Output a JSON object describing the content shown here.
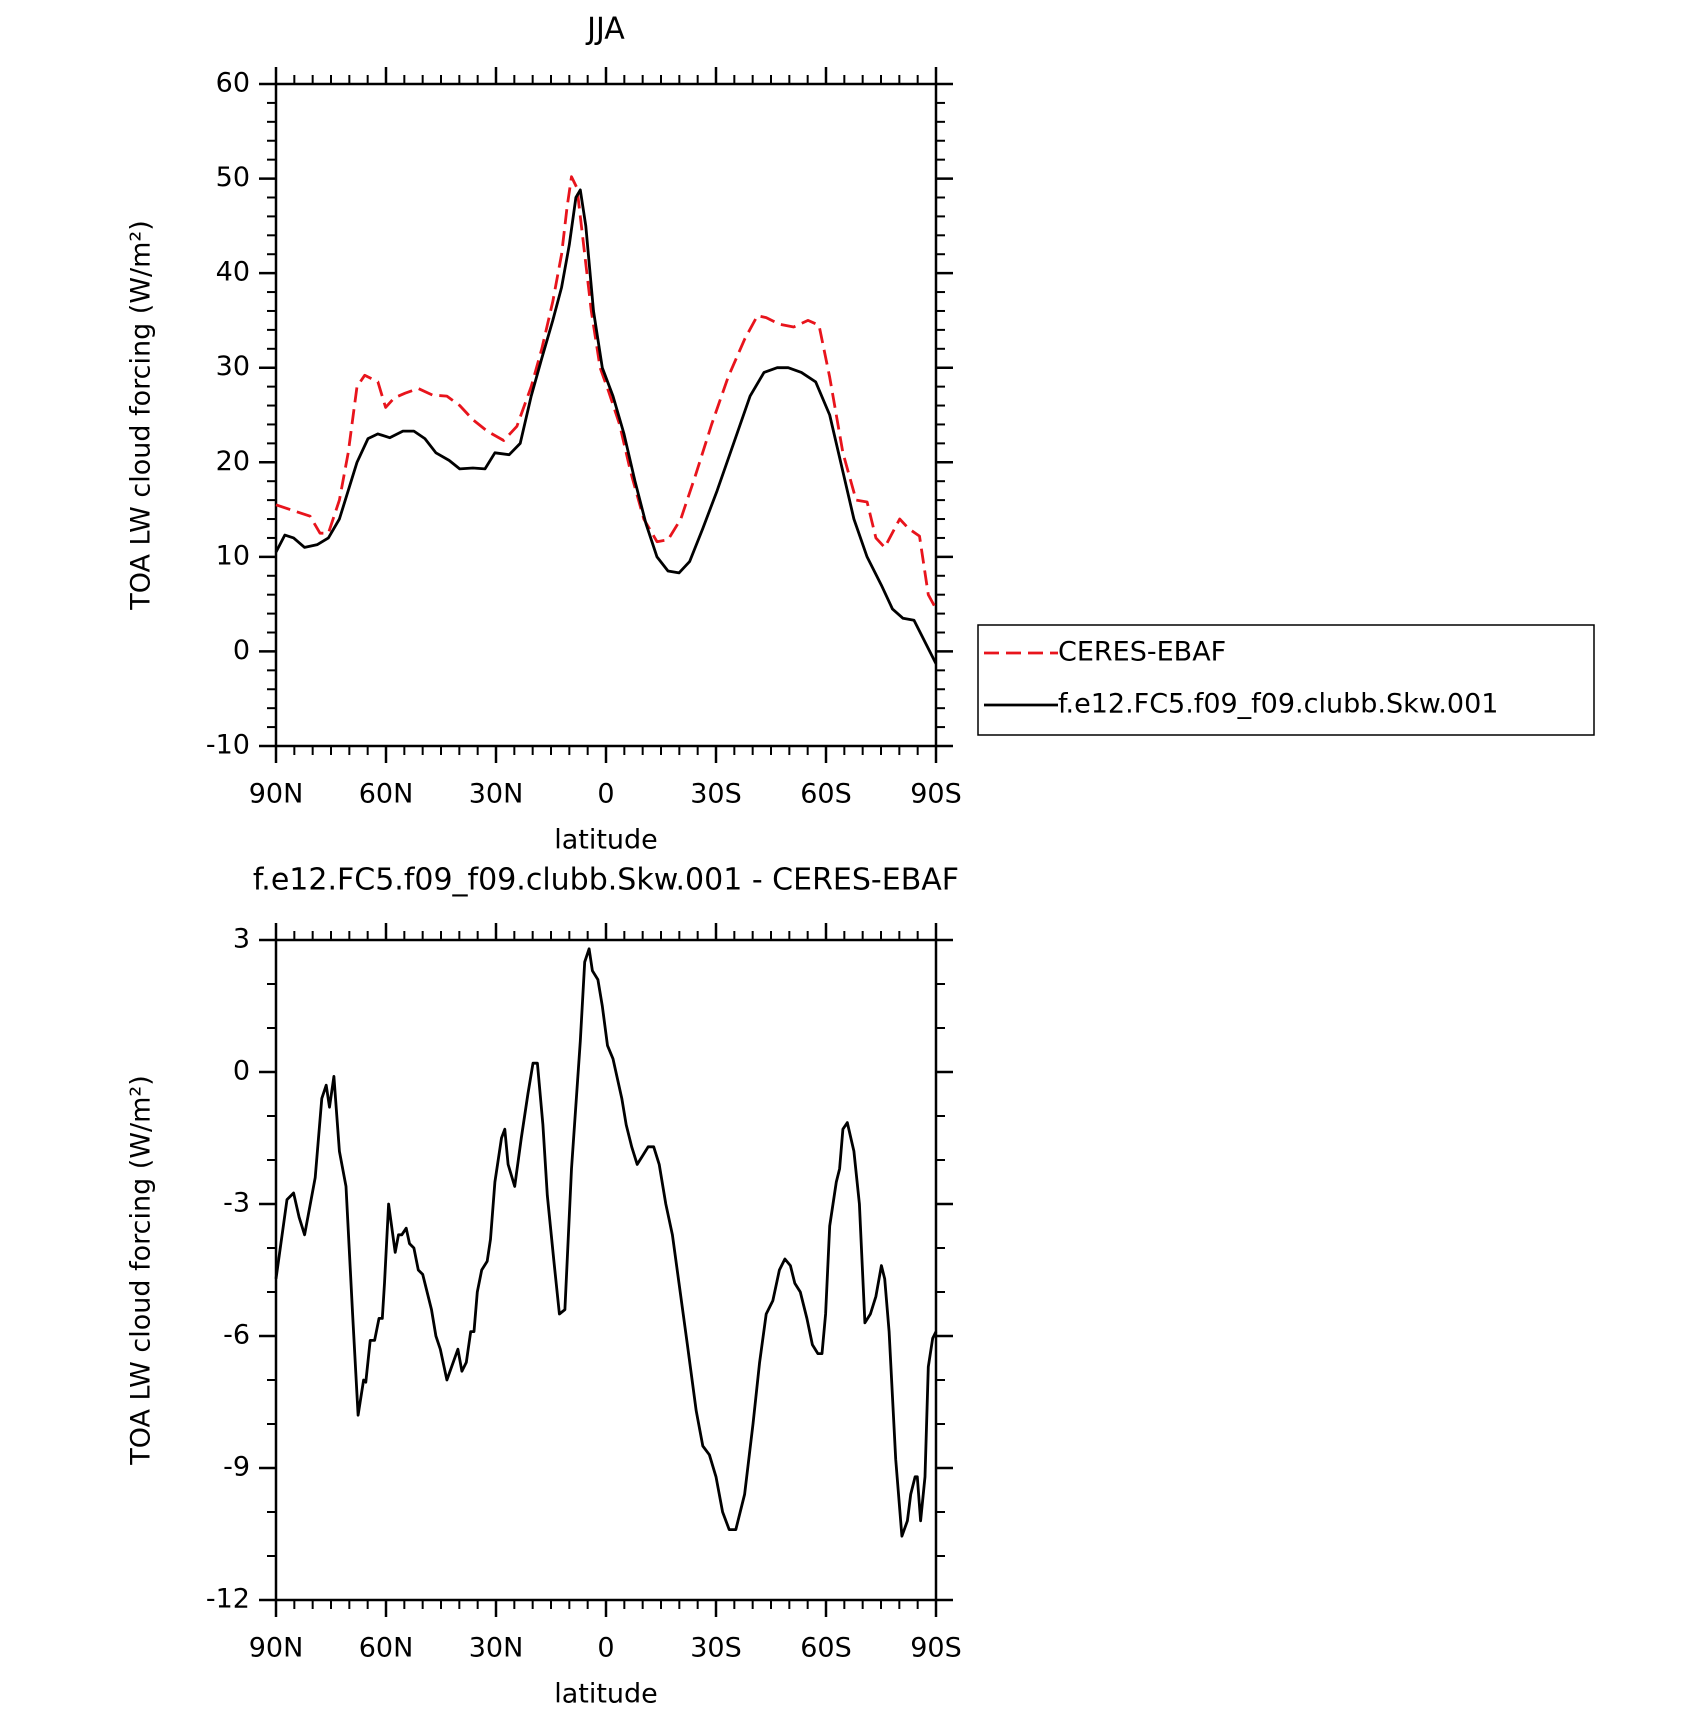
{
  "chart_data": [
    {
      "type": "line",
      "title": "JJA",
      "xlabel": "latitude",
      "ylabel": "TOA LW cloud forcing (W/m²)",
      "xlim": [
        90,
        -90
      ],
      "xticks": [
        {
          "value": 90,
          "label": "90N"
        },
        {
          "value": 60,
          "label": "60N"
        },
        {
          "value": 30,
          "label": "30N"
        },
        0,
        {
          "value": -30,
          "label": "30S"
        },
        {
          "value": -60,
          "label": "60S"
        },
        {
          "value": -90,
          "label": "90S"
        }
      ],
      "ylim": [
        -10,
        60
      ],
      "yticks": [
        -10,
        0,
        10,
        20,
        30,
        40,
        50,
        60
      ],
      "legend": "right",
      "series": [
        {
          "name": "CERES-EBAF",
          "color": "#e8141c",
          "dash": true,
          "x": [
            90,
            84.6,
            80.7,
            78,
            75.7,
            72.7,
            70.3,
            67.9,
            65.8,
            62.2,
            60.1,
            57.8,
            54.8,
            51.2,
            47.3,
            43.4,
            39.9,
            36.3,
            32.4,
            27.9,
            24.3,
            20.4,
            17.5,
            14.5,
            12.1,
            10.6,
            9.4,
            7.9,
            6.4,
            4.0,
            1.6,
            -0.7,
            -3.7,
            -6.7,
            -10.3,
            -13.9,
            -16.9,
            -20.4,
            -24.3,
            -28.8,
            -33.3,
            -37.8,
            -41.3,
            -43.7,
            -47.3,
            -51.2,
            -55.1,
            -58.1,
            -61.0,
            -64.6,
            -68.2,
            -71.2,
            -73.6,
            -76.0,
            -80.1,
            -82.5,
            -85.5,
            -87.9,
            -90
          ],
          "values": [
            15.5,
            14.8,
            14.3,
            12.5,
            12.5,
            16,
            21,
            28,
            29.2,
            28.5,
            25.8,
            26.8,
            27.3,
            27.8,
            27.1,
            27,
            26,
            24.5,
            23.3,
            22.3,
            23.8,
            28,
            32,
            37,
            42,
            47,
            50.2,
            49,
            44,
            36,
            30,
            27.5,
            24,
            19,
            14,
            11.6,
            11.8,
            14,
            18.5,
            24,
            29,
            33,
            35.5,
            35.3,
            34.6,
            34.3,
            35,
            34.5,
            29,
            21,
            16,
            15.8,
            12,
            11,
            14,
            13,
            12.2,
            6,
            4.5
          ]
        },
        {
          "name": "f.e12.FC5.f09_f09.clubb.Skw.001",
          "color": "#000000",
          "dash": false,
          "x": [
            90,
            87.6,
            85.2,
            82.2,
            78.7,
            75.7,
            72.7,
            70.3,
            67.9,
            64.9,
            62.2,
            59.0,
            55.4,
            52.4,
            49.4,
            46.4,
            42.8,
            39.9,
            36.3,
            33.0,
            30.3,
            26.4,
            23.4,
            20.4,
            17.5,
            14.5,
            12.1,
            10.0,
            8.2,
            7.0,
            5.5,
            3.4,
            1.0,
            -1.9,
            -4.9,
            -7.9,
            -10.9,
            -13.9,
            -16.9,
            -19.9,
            -22.8,
            -26.4,
            -30.3,
            -34.8,
            -39.3,
            -43.1,
            -46.7,
            -49.7,
            -53.3,
            -57.2,
            -61.0,
            -64.6,
            -67.6,
            -71.2,
            -75.1,
            -78.1,
            -81.0,
            -84.0,
            -87.0,
            -90
          ],
          "values": [
            10.5,
            12.3,
            12,
            11,
            11.3,
            12,
            14,
            17,
            20,
            22.5,
            23,
            22.6,
            23.3,
            23.3,
            22.5,
            21,
            20.2,
            19.3,
            19.4,
            19.3,
            21,
            20.8,
            22,
            27,
            31,
            35,
            38.5,
            43,
            48,
            48.8,
            45,
            36,
            30,
            27,
            23,
            18,
            13.5,
            10,
            8.5,
            8.3,
            9.5,
            13,
            17,
            22,
            27,
            29.5,
            30,
            30,
            29.5,
            28.5,
            25,
            19,
            14,
            10,
            7,
            4.5,
            3.5,
            3.3,
            1,
            -1.3
          ]
        }
      ]
    },
    {
      "type": "line",
      "title": "f.e12.FC5.f09_f09.clubb.Skw.001 - CERES-EBAF",
      "xlabel": "latitude",
      "ylabel": "TOA LW cloud forcing (W/m²)",
      "xlim": [
        90,
        -90
      ],
      "xticks": [
        {
          "value": 90,
          "label": "90N"
        },
        {
          "value": 60,
          "label": "60N"
        },
        {
          "value": 30,
          "label": "30N"
        },
        0,
        {
          "value": -30,
          "label": "30S"
        },
        {
          "value": -60,
          "label": "60S"
        },
        {
          "value": -90,
          "label": "90S"
        }
      ],
      "ylim": [
        -12,
        3
      ],
      "yticks": [
        -12,
        -9,
        -6,
        -3,
        0,
        3
      ],
      "series": [
        {
          "color": "#000000",
          "dash": false,
          "x": [
            90,
            87.0,
            85.2,
            83.7,
            82.2,
            79.3,
            77.5,
            76.3,
            75.4,
            74.2,
            72.7,
            70.9,
            69.1,
            67.6,
            66.1,
            65.5,
            64.3,
            63.1,
            61.9,
            61.0,
            60.4,
            59.3,
            57.5,
            56.6,
            55.7,
            54.5,
            53.6,
            52.4,
            51.2,
            50.0,
            47.6,
            46.4,
            45.2,
            43.4,
            40.4,
            39.3,
            38.1,
            36.9,
            36.0,
            35.1,
            33.9,
            32.4,
            31.5,
            30.3,
            28.5,
            27.6,
            26.7,
            24.9,
            23.1,
            21.3,
            19.9,
            18.7,
            17.2,
            16.0,
            14.2,
            12.7,
            11.2,
            9.4,
            7.0,
            5.8,
            4.6,
            3.7,
            2.2,
            1.0,
            -0.4,
            -1.9,
            -4.3,
            -5.5,
            -7.0,
            -8.5,
            -10.0,
            -11.5,
            -13.0,
            -14.5,
            -16.3,
            -18.1,
            -19.9,
            -22.2,
            -24.6,
            -26.4,
            -28.2,
            -30.0,
            -31.8,
            -33.6,
            -35.4,
            -37.8,
            -40.1,
            -41.9,
            -43.7,
            -45.5,
            -47.3,
            -48.8,
            -50.3,
            -51.5,
            -53.0,
            -54.8,
            -56.3,
            -57.8,
            -58.9,
            -59.9,
            -61.0,
            -62.8,
            -63.7,
            -64.6,
            -65.8,
            -67.6,
            -69.1,
            -70.6,
            -72.1,
            -73.6,
            -75.1,
            -76.0,
            -77.2,
            -79.0,
            -80.7,
            -82.2,
            -83.1,
            -84.3,
            -84.9,
            -85.8,
            -87.0,
            -87.9,
            -89.1,
            -90
          ],
          "values": [
            -4.7,
            -2.9,
            -2.75,
            -3.3,
            -3.7,
            -2.4,
            -0.6,
            -0.3,
            -0.8,
            -0.1,
            -1.8,
            -2.6,
            -5.5,
            -7.8,
            -7.0,
            -7.05,
            -6.1,
            -6.1,
            -5.6,
            -5.6,
            -4.8,
            -3.0,
            -4.1,
            -3.7,
            -3.7,
            -3.55,
            -3.9,
            -4.0,
            -4.5,
            -4.6,
            -5.4,
            -6.0,
            -6.3,
            -7.0,
            -6.3,
            -6.8,
            -6.6,
            -5.9,
            -5.9,
            -5.0,
            -4.5,
            -4.3,
            -3.8,
            -2.5,
            -1.5,
            -1.3,
            -2.1,
            -2.6,
            -1.5,
            -0.5,
            0.2,
            0.2,
            -1.2,
            -2.8,
            -4.3,
            -5.5,
            -5.4,
            -2.2,
            0.7,
            2.5,
            2.8,
            2.3,
            2.1,
            1.5,
            0.6,
            0.3,
            -0.6,
            -1.2,
            -1.7,
            -2.1,
            -1.9,
            -1.7,
            -1.7,
            -2.1,
            -3.0,
            -3.7,
            -4.8,
            -6.2,
            -7.7,
            -8.5,
            -8.7,
            -9.2,
            -10.0,
            -10.4,
            -10.4,
            -9.6,
            -8.0,
            -6.6,
            -5.5,
            -5.2,
            -4.5,
            -4.25,
            -4.4,
            -4.8,
            -5.0,
            -5.6,
            -6.2,
            -6.4,
            -6.4,
            -5.5,
            -3.5,
            -2.5,
            -2.2,
            -1.3,
            -1.15,
            -1.8,
            -3.0,
            -5.7,
            -5.5,
            -5.1,
            -4.4,
            -4.7,
            -5.9,
            -8.8,
            -10.55,
            -10.2,
            -9.6,
            -9.2,
            -9.2,
            -10.2,
            -9.2,
            -6.7,
            -6.05,
            -5.9
          ]
        }
      ]
    }
  ]
}
